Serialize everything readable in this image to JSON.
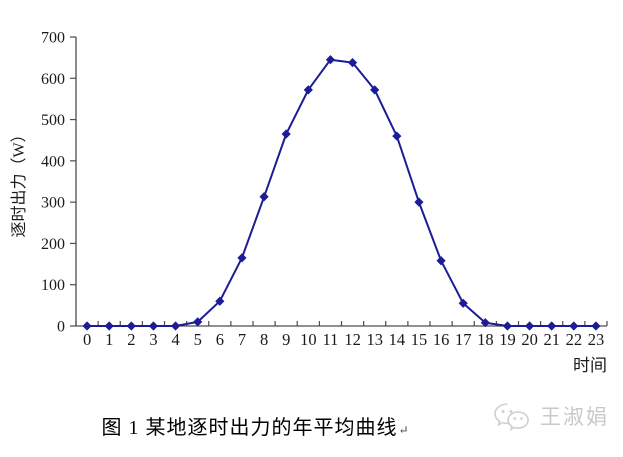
{
  "chart_data": {
    "type": "line",
    "x": [
      0,
      1,
      2,
      3,
      4,
      5,
      6,
      7,
      8,
      9,
      10,
      11,
      12,
      13,
      14,
      15,
      16,
      17,
      18,
      19,
      20,
      21,
      22,
      23
    ],
    "values": [
      0,
      0,
      0,
      0,
      0,
      10,
      60,
      165,
      313,
      465,
      572,
      645,
      638,
      572,
      460,
      300,
      158,
      55,
      8,
      0,
      0,
      0,
      0,
      0
    ],
    "title": "",
    "xlabel": "时间",
    "ylabel": "逐时出力（W）",
    "ylim": [
      0,
      700
    ],
    "yticks": [
      0,
      100,
      200,
      300,
      400,
      500,
      600,
      700
    ],
    "grid": false,
    "legend": "none",
    "line_color": "#1c1c96",
    "marker": "diamond",
    "axis_color": "#4d4d4d",
    "tick_label_color": "#1a1a1a"
  },
  "caption": {
    "text": "图 1  某地逐时出力的年平均曲线",
    "return_mark": "↵"
  },
  "watermark": {
    "icon": "wechat-icon",
    "name": "王淑娟",
    "color": "#c9c9c9"
  }
}
